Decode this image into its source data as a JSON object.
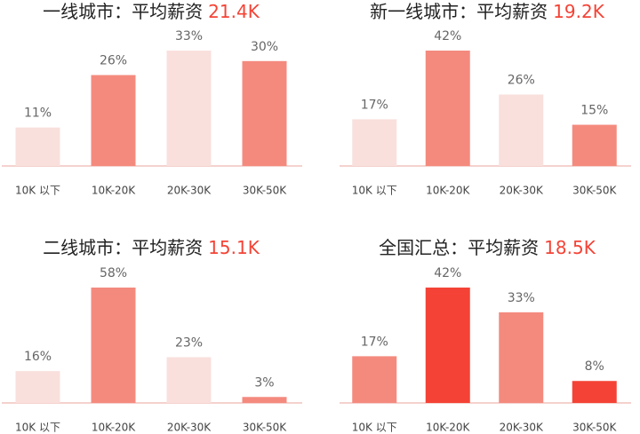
{
  "chart_data": [
    {
      "type": "bar",
      "title": "一线城市：平均薪资",
      "highlight": "21.4K",
      "categories": [
        "10K 以下",
        "10K-20K",
        "20K-30K",
        "30K-50K"
      ],
      "values": [
        11,
        26,
        33,
        30
      ],
      "value_labels": [
        "11%",
        "26%",
        "33%",
        "30%"
      ],
      "colors": [
        "#f9e0dd",
        "#f48a7e",
        "#f9e0dd",
        "#f48a7e"
      ]
    },
    {
      "type": "bar",
      "title": "新一线城市：平均薪资",
      "highlight": "19.2K",
      "categories": [
        "10K 以下",
        "10K-20K",
        "20K-30K",
        "30K-50K"
      ],
      "values": [
        17,
        42,
        26,
        15
      ],
      "value_labels": [
        "17%",
        "42%",
        "26%",
        "15%"
      ],
      "colors": [
        "#f9e0dd",
        "#f48a7e",
        "#f9e0dd",
        "#f48a7e"
      ]
    },
    {
      "type": "bar",
      "title": "二线城市：平均薪资",
      "highlight": "15.1K",
      "categories": [
        "10K 以下",
        "10K-20K",
        "20K-30K",
        "30K-50K"
      ],
      "values": [
        16,
        58,
        23,
        3
      ],
      "value_labels": [
        "16%",
        "58%",
        "23%",
        "3%"
      ],
      "colors": [
        "#f9e0dd",
        "#f48a7e",
        "#f9e0dd",
        "#f48a7e"
      ]
    },
    {
      "type": "bar",
      "title": "全国汇总：平均薪资",
      "highlight": "18.5K",
      "categories": [
        "10K 以下",
        "10K-20K",
        "20K-30K",
        "30K-50K"
      ],
      "values": [
        17,
        42,
        33,
        8
      ],
      "value_labels": [
        "17%",
        "42%",
        "33%",
        "8%"
      ],
      "colors": [
        "#f48a7e",
        "#f44336",
        "#f48a7e",
        "#f44336"
      ]
    }
  ]
}
